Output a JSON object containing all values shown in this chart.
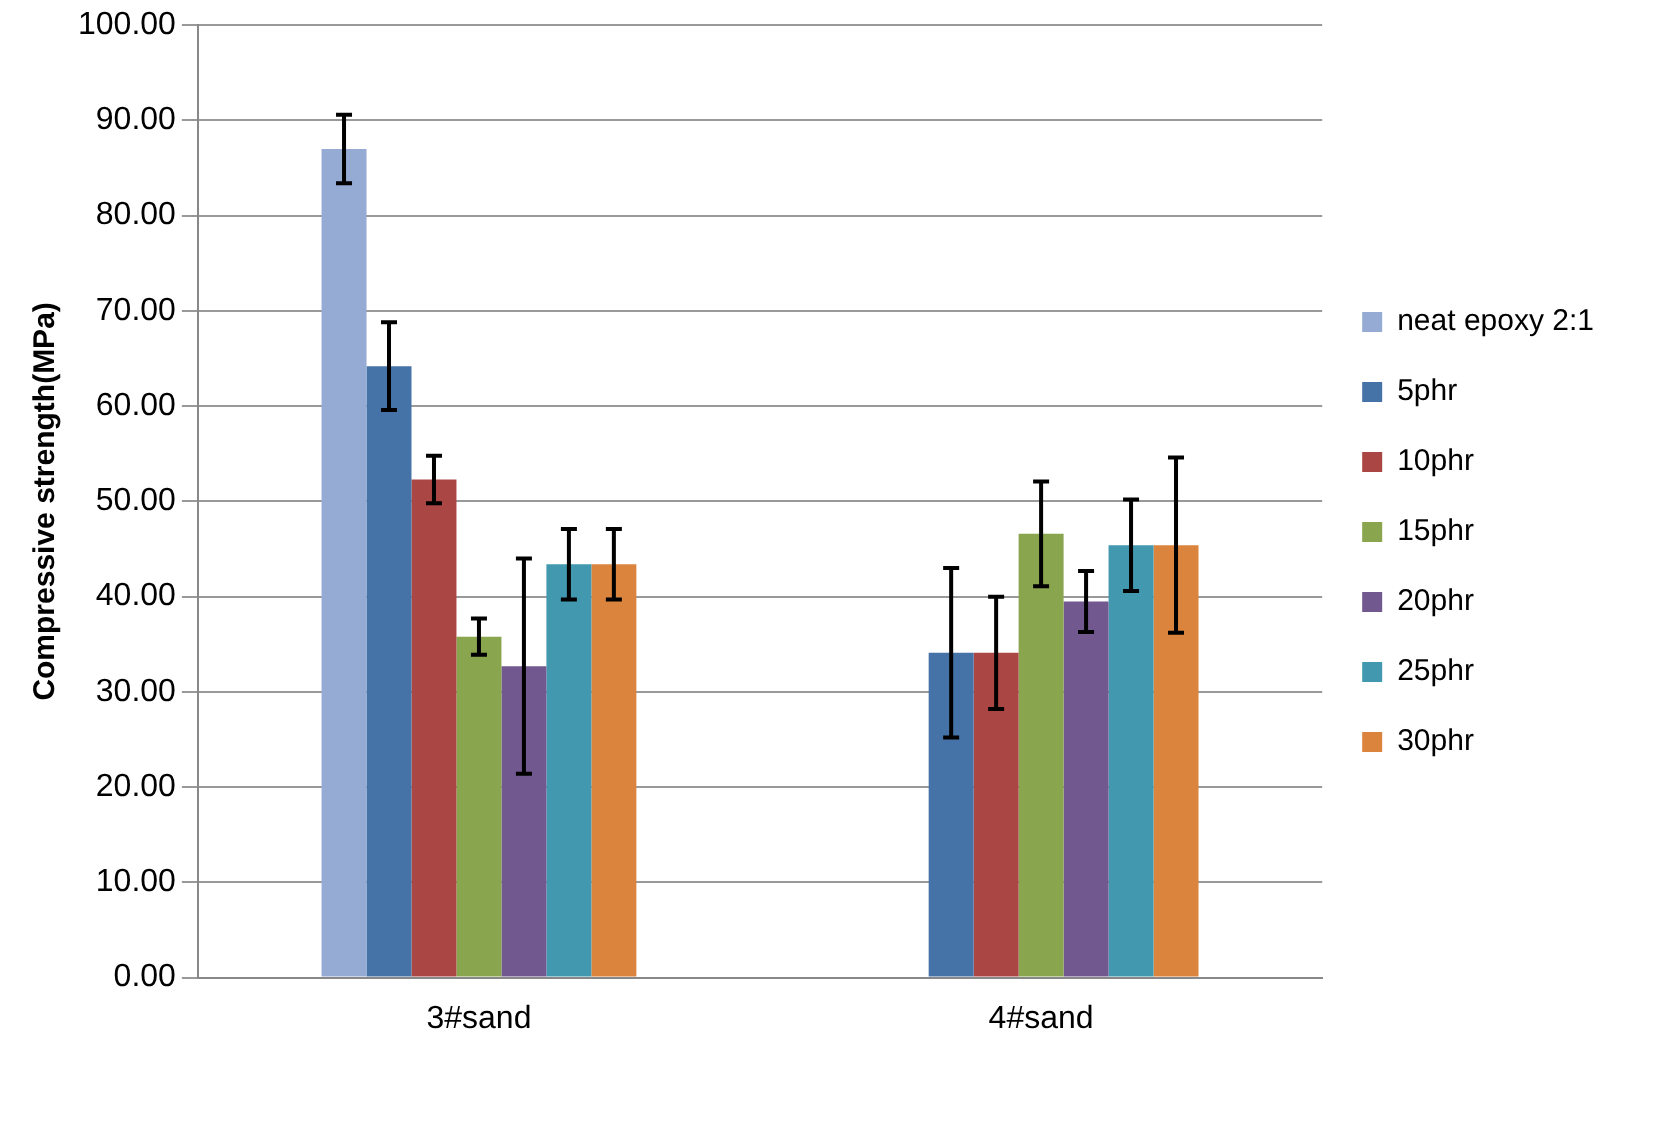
{
  "chart_data": {
    "type": "bar",
    "ylabel": "Compressive strength(MPa)",
    "categories": [
      "3#sand",
      "4#sand"
    ],
    "series": [
      {
        "name": "neat epoxy 2:1",
        "color": "#95abd4",
        "values": [
          87.0,
          null
        ],
        "errors": [
          3.6,
          null
        ]
      },
      {
        "name": "5phr",
        "color": "#4572a7",
        "values": [
          64.2,
          34.1
        ],
        "errors": [
          4.6,
          8.9
        ]
      },
      {
        "name": "10phr",
        "color": "#aa4643",
        "values": [
          52.3,
          34.1
        ],
        "errors": [
          2.5,
          5.9
        ]
      },
      {
        "name": "15phr",
        "color": "#89a54e",
        "values": [
          35.8,
          46.6
        ],
        "errors": [
          1.9,
          5.5
        ]
      },
      {
        "name": "20phr",
        "color": "#71588f",
        "values": [
          32.7,
          39.5
        ],
        "errors": [
          11.3,
          3.2
        ]
      },
      {
        "name": "25phr",
        "color": "#4198af",
        "values": [
          43.4,
          45.4
        ],
        "errors": [
          3.7,
          4.8
        ]
      },
      {
        "name": "30phr",
        "color": "#db843d",
        "values": [
          43.4,
          45.4
        ],
        "errors": [
          3.7,
          9.2
        ]
      }
    ],
    "ylim": [
      0,
      100
    ],
    "yticks": [
      {
        "value": 0,
        "label": "0.00"
      },
      {
        "value": 10,
        "label": "10.00"
      },
      {
        "value": 20,
        "label": "20.00"
      },
      {
        "value": 30,
        "label": "30.00"
      },
      {
        "value": 40,
        "label": "40.00"
      },
      {
        "value": 50,
        "label": "50.00"
      },
      {
        "value": 60,
        "label": "60.00"
      },
      {
        "value": 70,
        "label": "70.00"
      },
      {
        "value": 80,
        "label": "80.00"
      },
      {
        "value": 90,
        "label": "90.00"
      },
      {
        "value": 100,
        "label": "100.00"
      }
    ],
    "grid": "y",
    "legend": "right"
  }
}
